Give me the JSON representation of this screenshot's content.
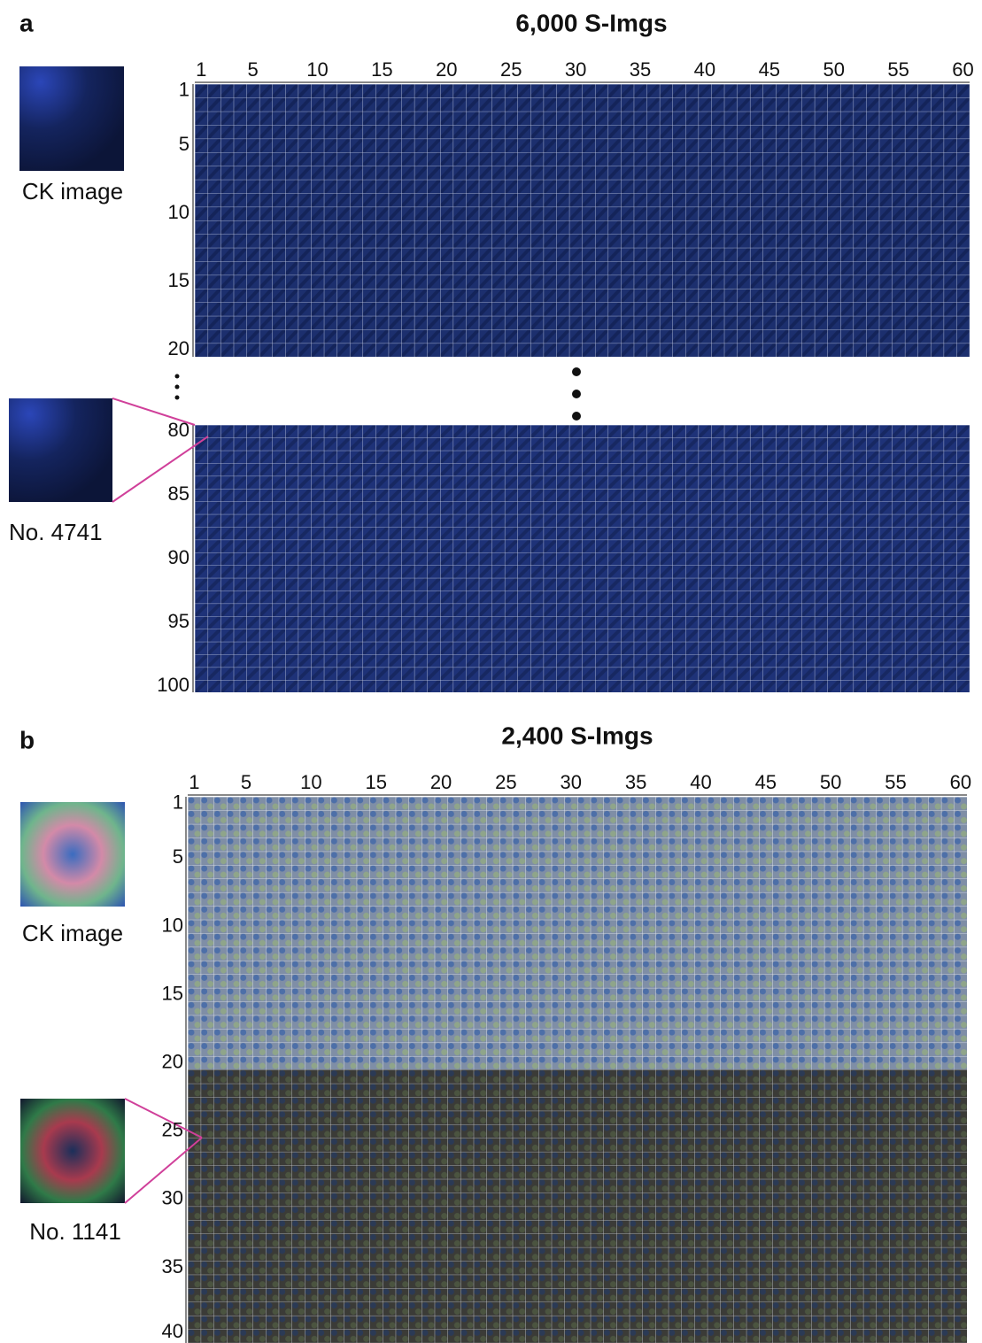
{
  "panel_a": {
    "label": "a",
    "title": "6,000 S-Imgs",
    "columns": [
      1,
      5,
      10,
      15,
      20,
      25,
      30,
      35,
      40,
      45,
      50,
      55,
      60
    ],
    "rows_top": [
      1,
      5,
      10,
      15,
      20
    ],
    "rows_bottom": [
      80,
      85,
      90,
      95,
      100
    ],
    "ck_label": "CK image",
    "sample_label": "No. 4741"
  },
  "panel_b": {
    "label": "b",
    "title": "2,400 S-Imgs",
    "columns": [
      1,
      5,
      10,
      15,
      20,
      25,
      30,
      35,
      40,
      45,
      50,
      55,
      60
    ],
    "rows": [
      1,
      5,
      10,
      15,
      20,
      25,
      30,
      35,
      40
    ],
    "ck_label": "CK image",
    "sample_label": "No. 1141"
  }
}
